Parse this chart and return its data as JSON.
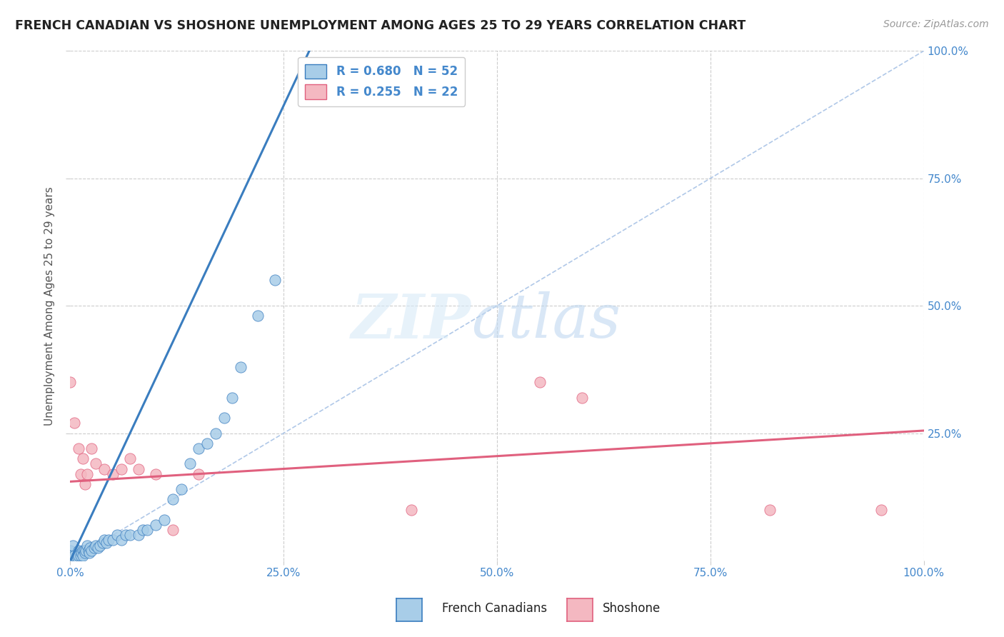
{
  "title": "FRENCH CANADIAN VS SHOSHONE UNEMPLOYMENT AMONG AGES 25 TO 29 YEARS CORRELATION CHART",
  "source": "Source: ZipAtlas.com",
  "ylabel": "Unemployment Among Ages 25 to 29 years",
  "xlim": [
    0,
    1.0
  ],
  "ylim": [
    0,
    1.0
  ],
  "xticks": [
    0.0,
    0.25,
    0.5,
    0.75,
    1.0
  ],
  "xticklabels": [
    "0.0%",
    "25.0%",
    "50.0%",
    "75.0%",
    "100.0%"
  ],
  "right_yticklabels": [
    "25.0%",
    "50.0%",
    "75.0%",
    "100.0%"
  ],
  "background_color": "#ffffff",
  "grid_color": "#cccccc",
  "legend_R_blue": "0.680",
  "legend_N_blue": "52",
  "legend_R_pink": "0.255",
  "legend_N_pink": "22",
  "blue_color": "#a8cde8",
  "pink_color": "#f4b8c1",
  "blue_line_color": "#3a7dbf",
  "pink_line_color": "#e0607e",
  "diagonal_color": "#b0c8e8",
  "title_color": "#222222",
  "axis_label_color": "#4488cc",
  "blue_scatter": [
    [
      0.0,
      0.02
    ],
    [
      0.002,
      0.01
    ],
    [
      0.003,
      0.03
    ],
    [
      0.004,
      0.0
    ],
    [
      0.005,
      0.005
    ],
    [
      0.005,
      0.01
    ],
    [
      0.007,
      0.005
    ],
    [
      0.008,
      0.01
    ],
    [
      0.009,
      0.005
    ],
    [
      0.01,
      0.02
    ],
    [
      0.01,
      0.01
    ],
    [
      0.012,
      0.01
    ],
    [
      0.013,
      0.015
    ],
    [
      0.015,
      0.02
    ],
    [
      0.015,
      0.01
    ],
    [
      0.016,
      0.02
    ],
    [
      0.017,
      0.015
    ],
    [
      0.018,
      0.02
    ],
    [
      0.02,
      0.03
    ],
    [
      0.021,
      0.02
    ],
    [
      0.022,
      0.015
    ],
    [
      0.023,
      0.025
    ],
    [
      0.025,
      0.02
    ],
    [
      0.028,
      0.025
    ],
    [
      0.03,
      0.03
    ],
    [
      0.032,
      0.025
    ],
    [
      0.035,
      0.03
    ],
    [
      0.038,
      0.035
    ],
    [
      0.04,
      0.04
    ],
    [
      0.042,
      0.035
    ],
    [
      0.045,
      0.04
    ],
    [
      0.05,
      0.04
    ],
    [
      0.055,
      0.05
    ],
    [
      0.06,
      0.04
    ],
    [
      0.065,
      0.05
    ],
    [
      0.07,
      0.05
    ],
    [
      0.08,
      0.05
    ],
    [
      0.085,
      0.06
    ],
    [
      0.09,
      0.06
    ],
    [
      0.1,
      0.07
    ],
    [
      0.11,
      0.08
    ],
    [
      0.12,
      0.12
    ],
    [
      0.13,
      0.14
    ],
    [
      0.14,
      0.19
    ],
    [
      0.15,
      0.22
    ],
    [
      0.16,
      0.23
    ],
    [
      0.17,
      0.25
    ],
    [
      0.18,
      0.28
    ],
    [
      0.19,
      0.32
    ],
    [
      0.2,
      0.38
    ],
    [
      0.22,
      0.48
    ],
    [
      0.24,
      0.55
    ]
  ],
  "pink_scatter": [
    [
      0.0,
      0.35
    ],
    [
      0.005,
      0.27
    ],
    [
      0.01,
      0.22
    ],
    [
      0.012,
      0.17
    ],
    [
      0.015,
      0.2
    ],
    [
      0.017,
      0.15
    ],
    [
      0.02,
      0.17
    ],
    [
      0.025,
      0.22
    ],
    [
      0.03,
      0.19
    ],
    [
      0.04,
      0.18
    ],
    [
      0.05,
      0.17
    ],
    [
      0.06,
      0.18
    ],
    [
      0.07,
      0.2
    ],
    [
      0.08,
      0.18
    ],
    [
      0.1,
      0.17
    ],
    [
      0.12,
      0.06
    ],
    [
      0.15,
      0.17
    ],
    [
      0.4,
      0.1
    ],
    [
      0.55,
      0.35
    ],
    [
      0.6,
      0.32
    ],
    [
      0.82,
      0.1
    ],
    [
      0.95,
      0.1
    ]
  ],
  "blue_regline_x": [
    0.0,
    0.28
  ],
  "blue_regline_y": [
    0.0,
    1.0
  ],
  "pink_regline_x": [
    0.0,
    1.0
  ],
  "pink_regline_y": [
    0.155,
    0.255
  ]
}
